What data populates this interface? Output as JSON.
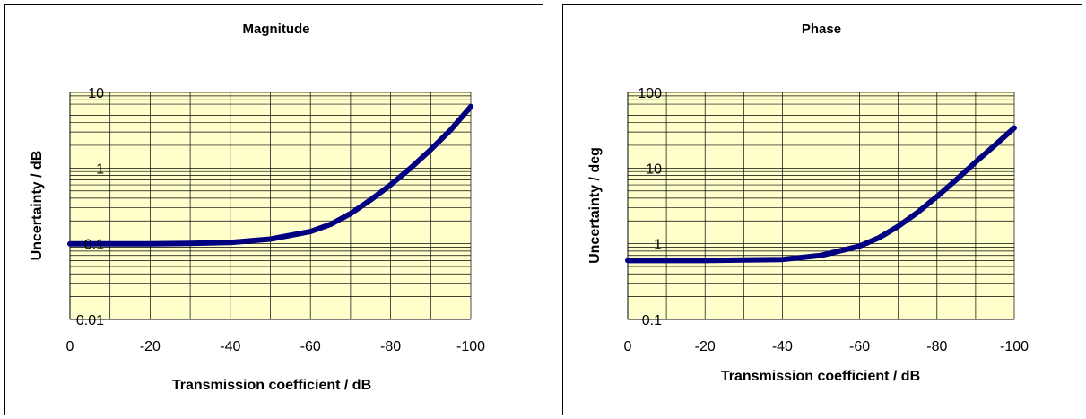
{
  "chart_data": [
    {
      "type": "line",
      "title": "Magnitude",
      "xlabel": "Transmission coefficient / dB",
      "ylabel": "Uncertainty / dB",
      "x_ticks": [
        "0",
        "-20",
        "-40",
        "-60",
        "-80",
        "-100"
      ],
      "y_ticks": [
        "10",
        "1",
        "0.1",
        "0.01"
      ],
      "xlim": [
        0,
        -100
      ],
      "ylim": [
        0.01,
        10
      ],
      "y_scale": "log",
      "grid": true,
      "background_color": "#ffffcc",
      "line_color": "#000080",
      "series": [
        {
          "x": [
            0,
            -10,
            -20,
            -30,
            -40,
            -50,
            -60,
            -65,
            -70,
            -75,
            -80,
            -85,
            -90,
            -95,
            -100
          ],
          "values": [
            0.1,
            0.1,
            0.1,
            0.101,
            0.104,
            0.115,
            0.145,
            0.18,
            0.25,
            0.38,
            0.6,
            1.0,
            1.75,
            3.2,
            6.5
          ]
        }
      ]
    },
    {
      "type": "line",
      "title": "Phase",
      "xlabel": "Transmission coefficient / dB",
      "ylabel": "Uncertainty / deg",
      "x_ticks": [
        "0",
        "-20",
        "-40",
        "-60",
        "-80",
        "-100"
      ],
      "y_ticks": [
        "100",
        "10",
        "1",
        "0.1"
      ],
      "xlim": [
        0,
        -100
      ],
      "ylim": [
        0.1,
        100
      ],
      "y_scale": "log",
      "grid": true,
      "background_color": "#ffffcc",
      "line_color": "#000080",
      "series": [
        {
          "x": [
            0,
            -10,
            -20,
            -30,
            -40,
            -50,
            -60,
            -65,
            -70,
            -75,
            -80,
            -85,
            -90,
            -95,
            -100
          ],
          "values": [
            0.6,
            0.6,
            0.6,
            0.61,
            0.62,
            0.7,
            0.93,
            1.2,
            1.7,
            2.6,
            4.2,
            7.0,
            12,
            20,
            34
          ]
        }
      ]
    }
  ]
}
